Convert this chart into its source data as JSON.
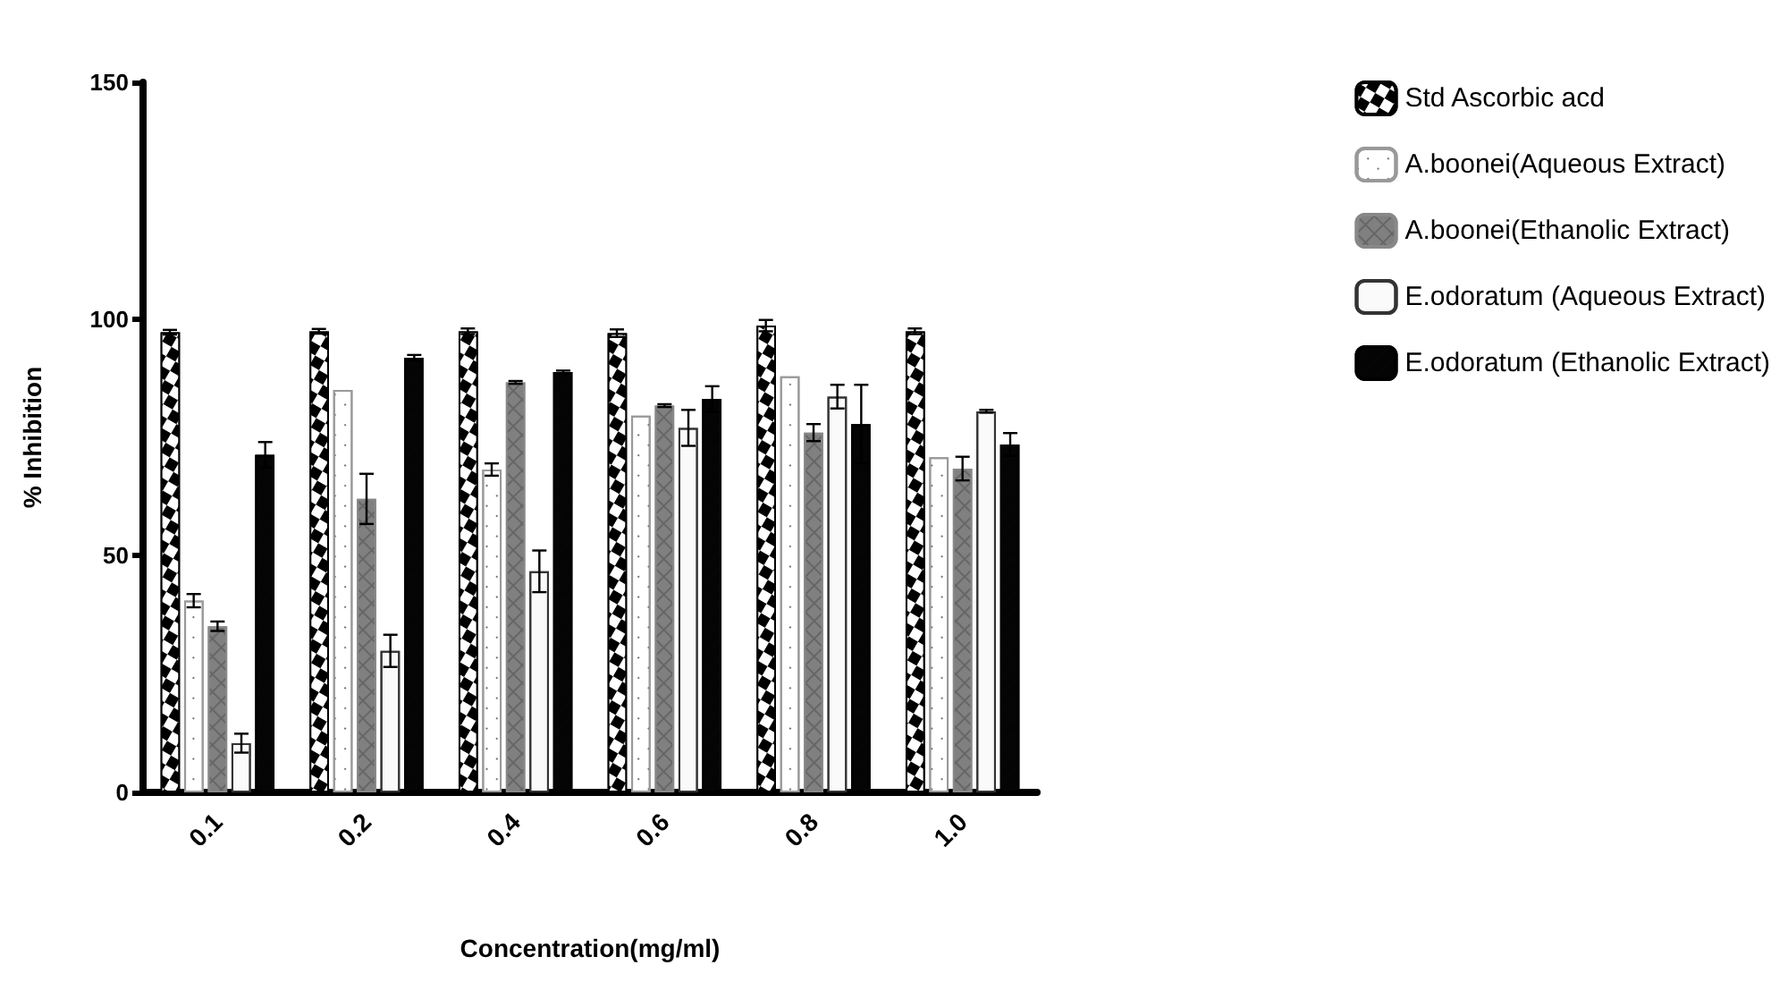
{
  "chart_data": {
    "type": "bar",
    "xlabel": "Concentration(mg/ml)",
    "ylabel": "% Inhibition",
    "categories": [
      "0.1",
      "0.2",
      "0.4",
      "0.6",
      "0.8",
      "1.0"
    ],
    "series": [
      {
        "name": "Std Ascorbic acd",
        "color": "#000000",
        "values": [
          97.2,
          97.4,
          97.4,
          97,
          98.6,
          97.4
        ],
        "errors": [
          0.5,
          0.5,
          0.6,
          0.8,
          1.2,
          0.6
        ]
      },
      {
        "name": "A.boonei(Aqueous Extract)",
        "color": "#ffffff",
        "values": [
          40.5,
          85,
          68.2,
          79.6,
          87.9,
          70.8
        ],
        "errors": [
          1.4,
          null,
          1.3,
          null,
          null,
          null
        ]
      },
      {
        "name": "A.boonei(Ethanolic Extract)",
        "color": "#808080",
        "values": [
          35.1,
          62,
          86.6,
          81.7,
          76,
          68.4
        ],
        "errors": [
          1,
          5.3,
          0.3,
          0.3,
          1.8,
          2.5
        ]
      },
      {
        "name": "E.odoratum (Aqueous Extract)",
        "color": "#fafafa",
        "values": [
          10.4,
          29.9,
          46.7,
          77,
          83.6,
          80.5
        ],
        "errors": [
          2,
          3.4,
          4.4,
          3.8,
          2.5,
          0.3
        ]
      },
      {
        "name": "E.odoratum (Ethanolic Extract)",
        "color": "#050505",
        "values": [
          71.3,
          91.8,
          88.8,
          83.1,
          77.8,
          73.5
        ],
        "errors": [
          2.7,
          0.6,
          0.3,
          2.7,
          8.3,
          2.4
        ]
      }
    ],
    "ylim": [
      0,
      150
    ],
    "yticks": [
      0,
      50,
      100,
      150
    ],
    "grid": false,
    "legend": "right"
  }
}
